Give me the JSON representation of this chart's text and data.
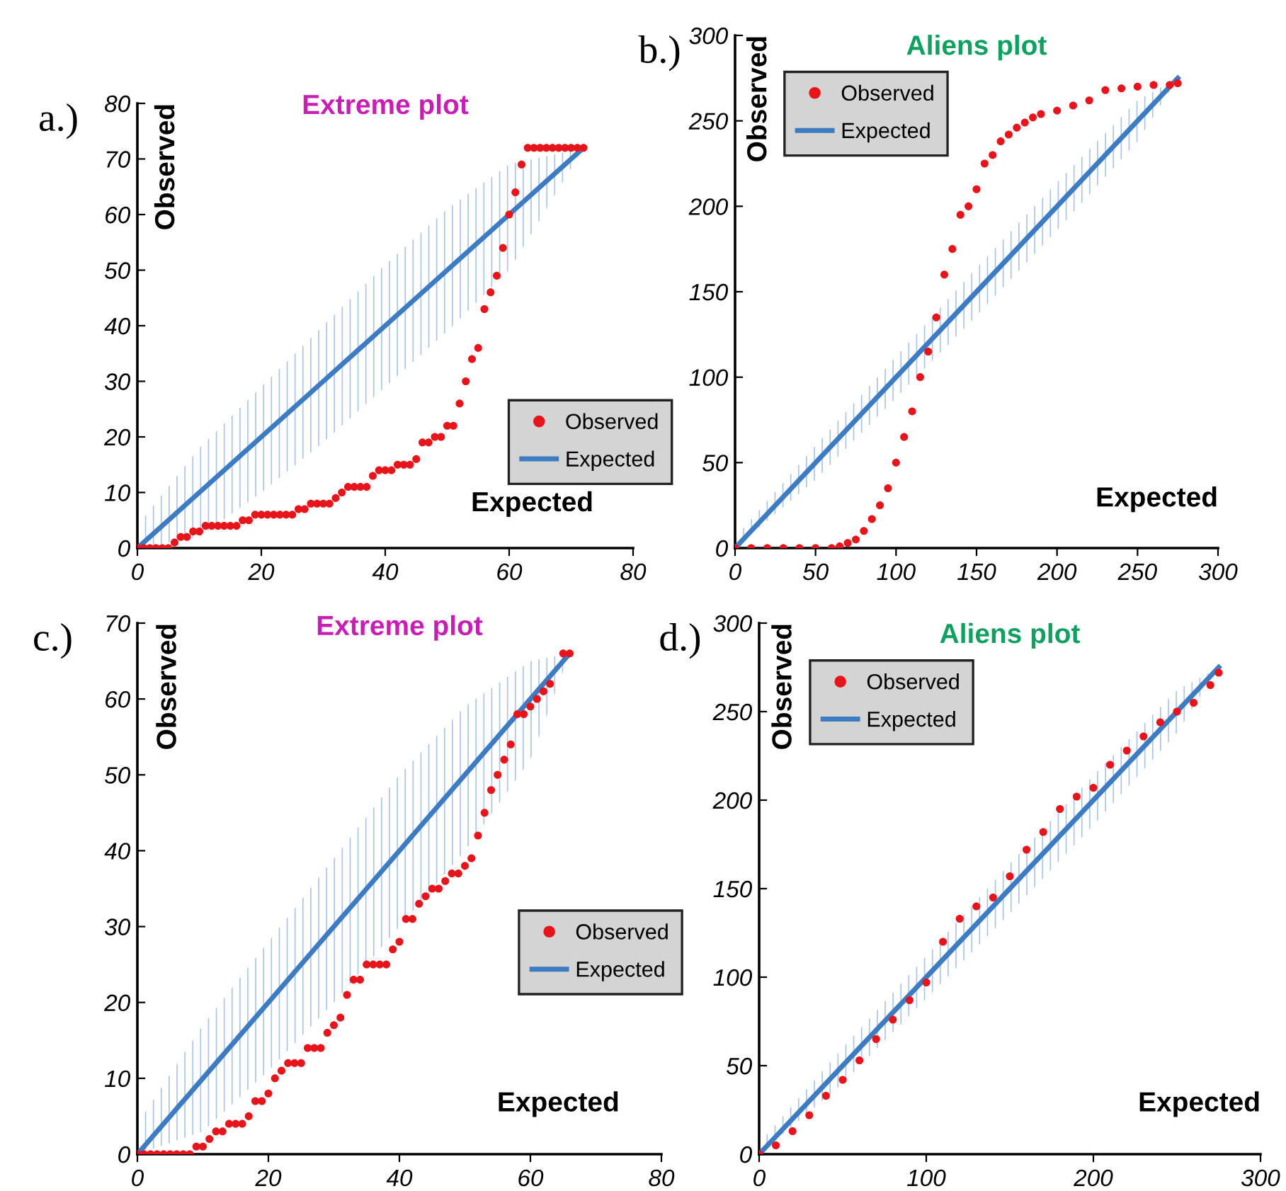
{
  "chart_data": [
    {
      "type": "scatter",
      "title": "Extreme plot",
      "xlabel": "Expected",
      "ylabel": "Observed",
      "annotations": [
        "a.)"
      ],
      "legend": "bottom right",
      "grid": false,
      "xlim": [
        0,
        80
      ],
      "xticks": [
        0,
        20,
        40,
        60,
        80
      ],
      "ylim": [
        0,
        80
      ],
      "yticks": [
        0,
        10,
        20,
        30,
        40,
        50,
        60,
        70,
        80
      ],
      "series": [
        {
          "name": "Observed",
          "marker": "circle",
          "color": "#e8141b",
          "x": [
            0,
            1,
            2,
            3,
            4,
            5,
            6,
            7,
            8,
            9,
            10,
            11,
            12,
            13,
            14,
            15,
            16,
            17,
            18,
            19,
            20,
            21,
            22,
            23,
            24,
            25,
            26,
            27,
            28,
            29,
            30,
            31,
            32,
            33,
            34,
            35,
            36,
            37,
            38,
            39,
            40,
            41,
            42,
            43,
            44,
            45,
            46,
            47,
            48,
            49,
            50,
            51,
            52,
            53,
            54,
            55,
            56,
            57,
            58,
            59,
            60,
            61,
            62,
            63,
            64,
            65,
            66,
            67,
            68,
            69,
            70,
            71,
            72
          ],
          "values": [
            0,
            0,
            0,
            0,
            0,
            0,
            1,
            2,
            2,
            3,
            3,
            4,
            4,
            4,
            4,
            4,
            4,
            5,
            5,
            6,
            6,
            6,
            6,
            6,
            6,
            6,
            7,
            7,
            8,
            8,
            8,
            8,
            9,
            10,
            11,
            11,
            11,
            11,
            13,
            14,
            14,
            14,
            15,
            15,
            15,
            16,
            19,
            19,
            20,
            20,
            22,
            22,
            26,
            30,
            34,
            36,
            43,
            46,
            49,
            54,
            60,
            64,
            69,
            72,
            72,
            72,
            72,
            72,
            72,
            72,
            72,
            72,
            72
          ]
        },
        {
          "name": "Expected",
          "type": "line",
          "marker": "none",
          "color": "#3d7cc2",
          "x": [
            0,
            10,
            20,
            30,
            40,
            50,
            60,
            72
          ],
          "values": [
            0,
            10,
            20,
            30,
            40,
            50,
            60,
            72
          ],
          "lower": [
            0,
            2,
            10,
            19,
            29,
            39,
            50,
            72
          ],
          "upper": [
            4,
            18,
            29,
            40,
            51,
            61,
            69,
            72
          ]
        }
      ]
    },
    {
      "type": "scatter",
      "title": "Aliens plot",
      "xlabel": "Expected",
      "ylabel": "Observed",
      "annotations": [
        "b.)"
      ],
      "legend": "top left",
      "grid": false,
      "xlim": [
        0,
        300
      ],
      "xticks": [
        0,
        50,
        100,
        150,
        200,
        250,
        300
      ],
      "ylim": [
        0,
        300
      ],
      "yticks": [
        0,
        50,
        100,
        150,
        200,
        250,
        300
      ],
      "series": [
        {
          "name": "Observed",
          "marker": "circle",
          "color": "#e8141b",
          "x": [
            0,
            10,
            20,
            30,
            40,
            50,
            60,
            65,
            70,
            75,
            80,
            85,
            90,
            95,
            100,
            105,
            110,
            115,
            120,
            125,
            130,
            135,
            140,
            145,
            150,
            155,
            160,
            165,
            170,
            175,
            180,
            185,
            190,
            200,
            210,
            220,
            230,
            240,
            250,
            260,
            270,
            275
          ],
          "values": [
            0,
            0,
            0,
            0,
            0,
            0,
            0,
            1,
            3,
            5,
            10,
            17,
            25,
            35,
            50,
            65,
            80,
            100,
            115,
            135,
            160,
            175,
            195,
            200,
            210,
            225,
            230,
            238,
            242,
            246,
            249,
            252,
            254,
            256,
            259,
            262,
            268,
            269,
            270,
            271,
            271,
            272
          ]
        },
        {
          "name": "Expected",
          "type": "line",
          "marker": "none",
          "color": "#3d7cc2",
          "x": [
            0,
            50,
            100,
            150,
            200,
            250,
            275
          ],
          "values": [
            0,
            50,
            100,
            150,
            200,
            250,
            275
          ],
          "lower": [
            0,
            40,
            88,
            136,
            186,
            238,
            275
          ],
          "upper": [
            6,
            60,
            112,
            164,
            214,
            262,
            275
          ]
        }
      ]
    },
    {
      "type": "scatter",
      "title": "Extreme plot",
      "xlabel": "Expected",
      "ylabel": "Observed",
      "annotations": [
        "c.)"
      ],
      "legend": "right",
      "grid": false,
      "xlim": [
        0,
        80
      ],
      "xticks": [
        0,
        20,
        40,
        60,
        80
      ],
      "ylim": [
        0,
        70
      ],
      "yticks": [
        0,
        10,
        20,
        30,
        40,
        50,
        60,
        70
      ],
      "series": [
        {
          "name": "Observed",
          "marker": "circle",
          "color": "#e8141b",
          "x": [
            0,
            1,
            2,
            3,
            4,
            5,
            6,
            7,
            8,
            9,
            10,
            11,
            12,
            13,
            14,
            15,
            16,
            17,
            18,
            19,
            20,
            21,
            22,
            23,
            24,
            25,
            26,
            27,
            28,
            29,
            30,
            31,
            32,
            33,
            34,
            35,
            36,
            37,
            38,
            39,
            40,
            41,
            42,
            43,
            44,
            45,
            46,
            47,
            48,
            49,
            50,
            51,
            52,
            53,
            54,
            55,
            56,
            57,
            58,
            59,
            60,
            61,
            62,
            63,
            65,
            66
          ],
          "values": [
            0,
            0,
            0,
            0,
            0,
            0,
            0,
            0,
            0,
            1,
            1,
            2,
            3,
            3,
            4,
            4,
            4,
            5,
            7,
            7,
            8,
            10,
            11,
            12,
            12,
            12,
            14,
            14,
            14,
            16,
            17,
            18,
            21,
            23,
            23,
            25,
            25,
            25,
            25,
            27,
            28,
            31,
            31,
            33,
            34,
            35,
            35,
            36,
            37,
            37,
            38,
            39,
            42,
            45,
            48,
            50,
            52,
            54,
            58,
            58,
            59,
            60,
            61,
            62,
            66,
            66
          ]
        },
        {
          "name": "Expected",
          "type": "line",
          "marker": "none",
          "color": "#3d7cc2",
          "x": [
            0,
            10,
            20,
            30,
            40,
            50,
            60,
            66
          ],
          "values": [
            0,
            10,
            20,
            30,
            40,
            50,
            60,
            66
          ],
          "lower": [
            0,
            3,
            11,
            20,
            30,
            40,
            52,
            66
          ],
          "upper": [
            4,
            17,
            28,
            39,
            50,
            59,
            65,
            66
          ]
        }
      ]
    },
    {
      "type": "scatter",
      "title": "Aliens plot",
      "xlabel": "Expected",
      "ylabel": "Observed",
      "annotations": [
        "d.)"
      ],
      "legend": "top left",
      "grid": false,
      "xlim": [
        0,
        300
      ],
      "xticks": [
        0,
        100,
        200,
        300
      ],
      "ylim": [
        0,
        300
      ],
      "yticks": [
        0,
        50,
        100,
        150,
        200,
        250,
        300
      ],
      "series": [
        {
          "name": "Observed",
          "marker": "circle",
          "color": "#e8141b",
          "x": [
            0,
            10,
            20,
            30,
            40,
            50,
            60,
            70,
            80,
            90,
            100,
            110,
            120,
            130,
            140,
            150,
            160,
            170,
            180,
            190,
            200,
            210,
            220,
            230,
            240,
            250,
            260,
            270,
            275
          ],
          "values": [
            0,
            5,
            13,
            22,
            33,
            42,
            53,
            65,
            76,
            87,
            97,
            120,
            133,
            140,
            145,
            157,
            172,
            182,
            195,
            202,
            207,
            220,
            228,
            236,
            244,
            250,
            255,
            265,
            272
          ]
        },
        {
          "name": "Expected",
          "type": "line",
          "marker": "none",
          "color": "#3d7cc2",
          "x": [
            0,
            50,
            100,
            150,
            200,
            250,
            275
          ],
          "values": [
            0,
            50,
            100,
            150,
            200,
            250,
            275
          ],
          "lower": [
            0,
            40,
            88,
            136,
            186,
            238,
            275
          ],
          "upper": [
            6,
            60,
            112,
            164,
            214,
            262,
            275
          ]
        }
      ]
    }
  ]
}
